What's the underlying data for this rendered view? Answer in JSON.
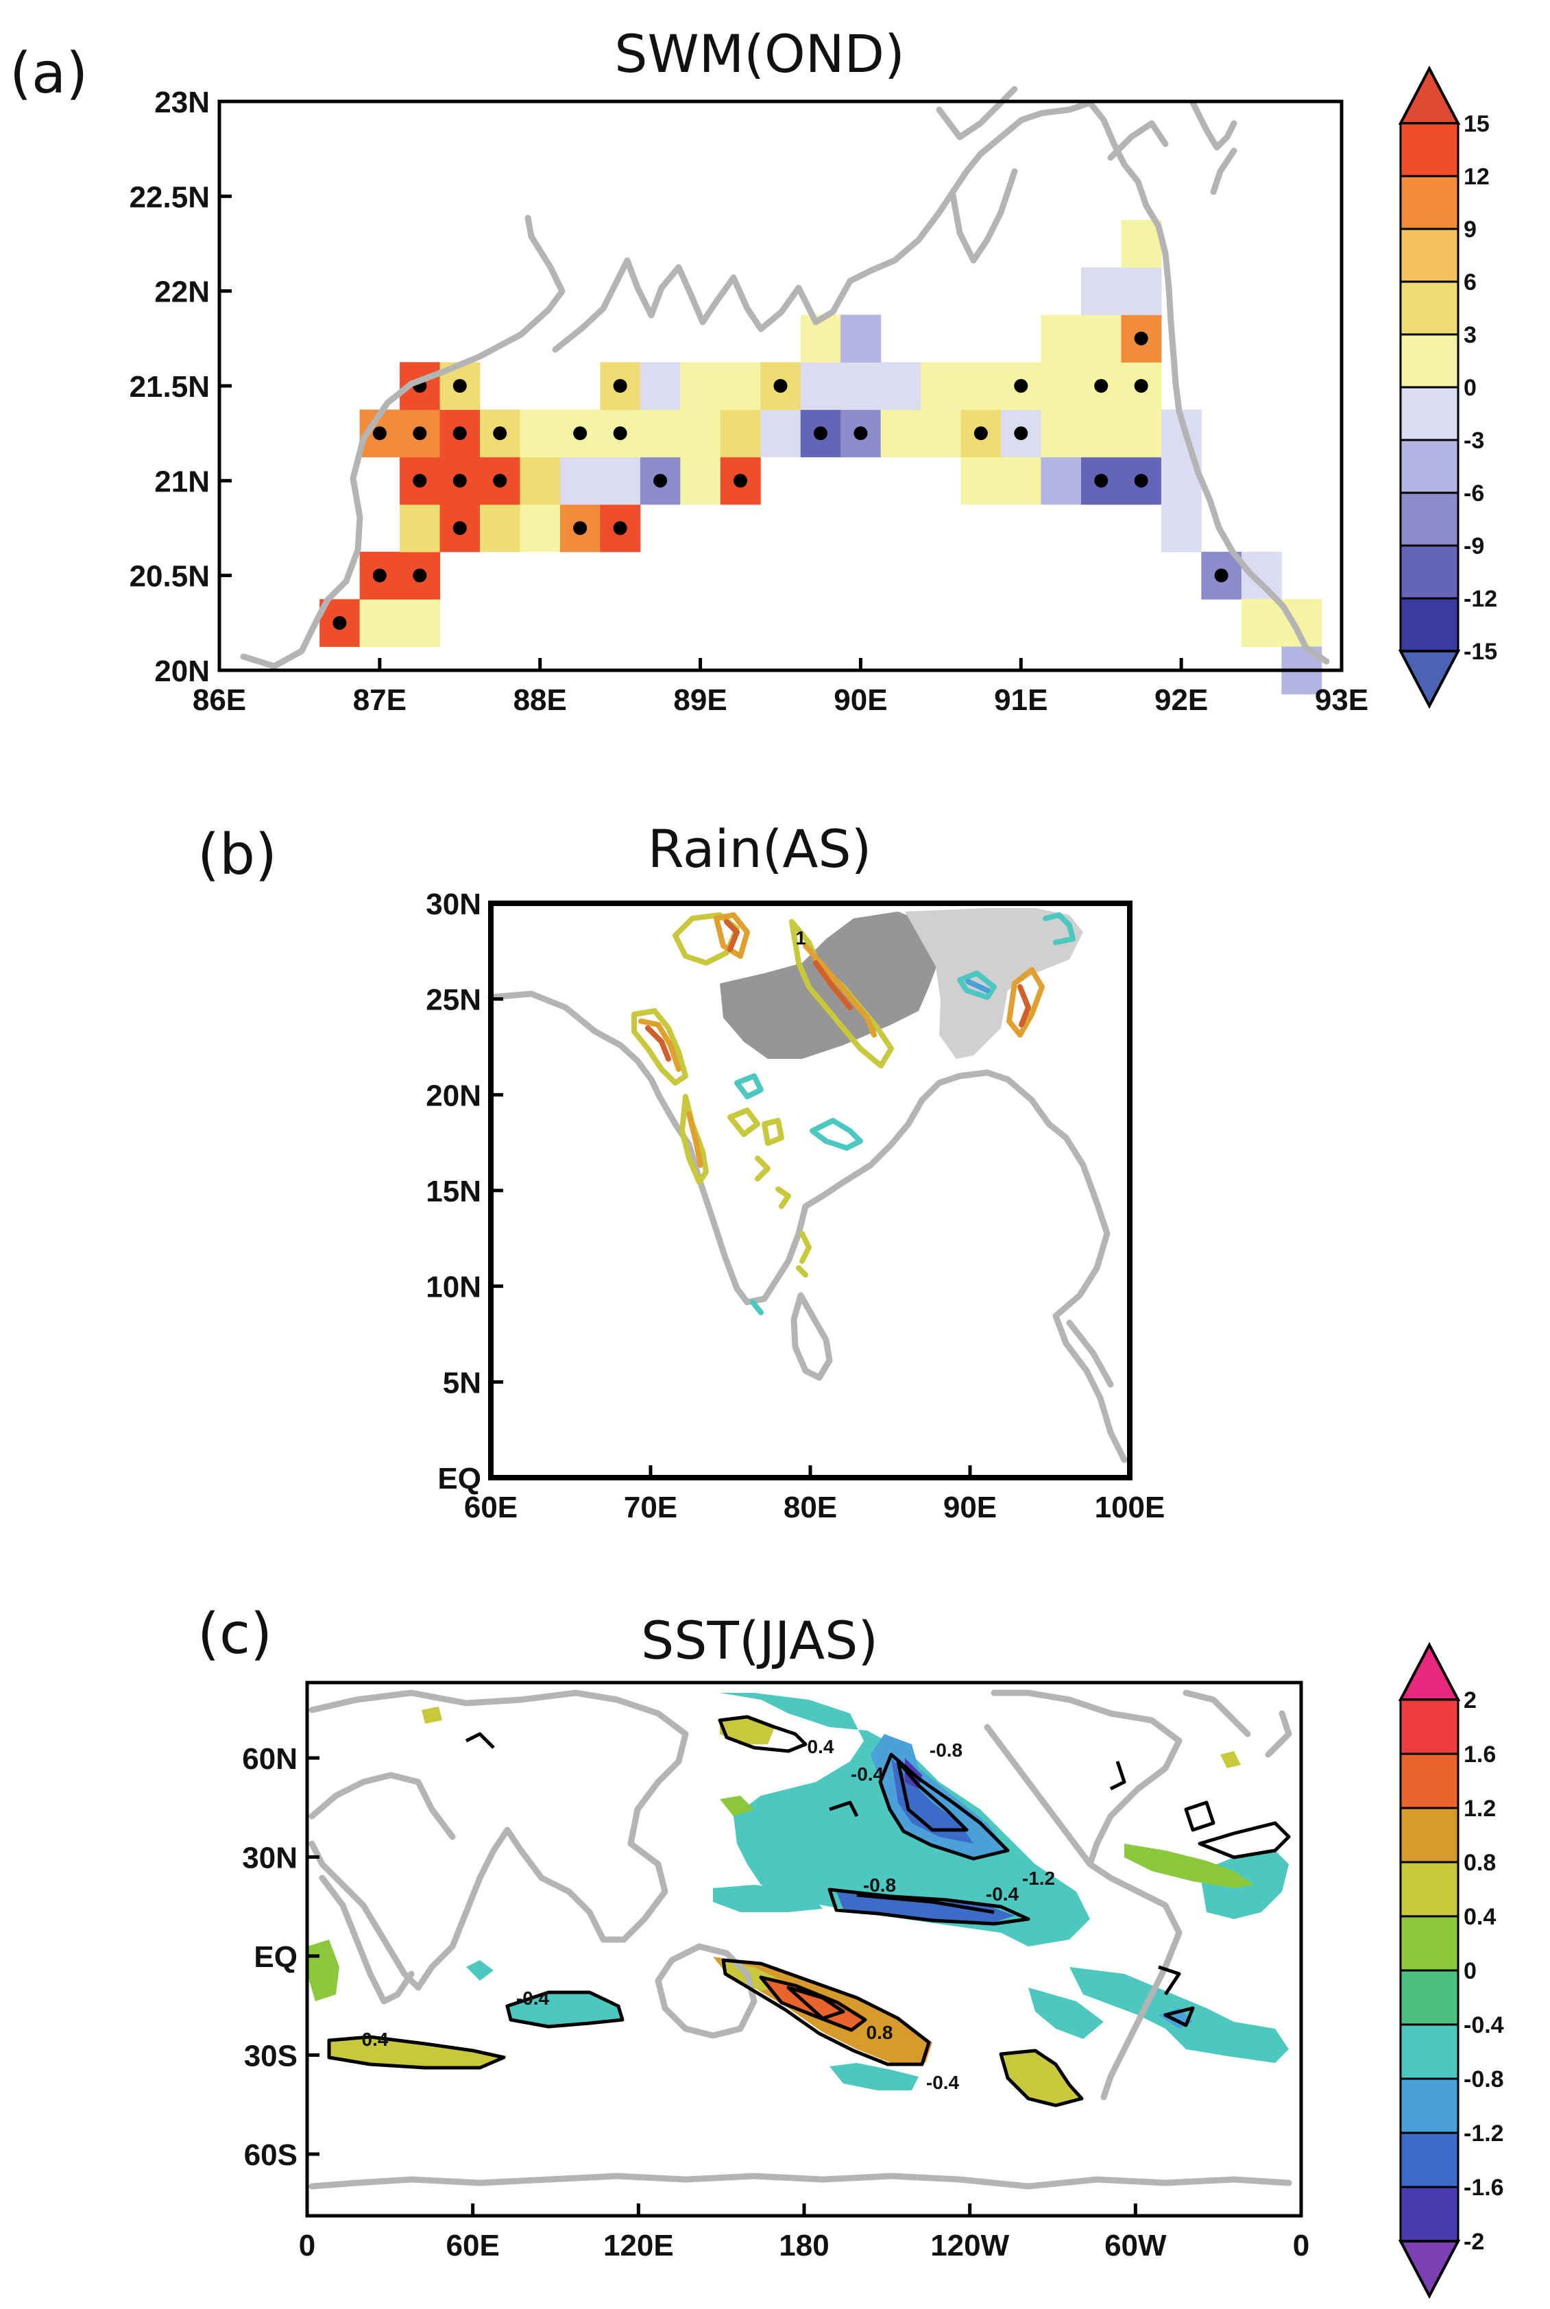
{
  "figure": {
    "panels": [
      {
        "letter": "(a)",
        "title": "SWM(OND)"
      },
      {
        "letter": "(b)",
        "title": "Rain(AS)"
      },
      {
        "letter": "(c)",
        "title": "SST(JJAS)"
      }
    ]
  },
  "chart_data": [
    {
      "type": "heatmap",
      "title": "SWM(OND)",
      "panel_label": "(a)",
      "xlim": [
        86,
        93
      ],
      "ylim": [
        20,
        23
      ],
      "x_ticks": [
        "86E",
        "87E",
        "88E",
        "89E",
        "90E",
        "91E",
        "92E",
        "93E"
      ],
      "y_ticks": [
        "20N",
        "20.5N",
        "21N",
        "21.5N",
        "22N",
        "22.5N",
        "23N"
      ],
      "colorbar": {
        "levels": [
          "15",
          "12",
          "9",
          "6",
          "3",
          "0",
          "-3",
          "-6",
          "-9",
          "-12",
          "-15"
        ],
        "colors": [
          "#c83a2a",
          "#ee4e2c",
          "#f08c3c",
          "#f4c25c",
          "#f0dc74",
          "#f4f4a4",
          "#dcdcf0",
          "#b4b4e2",
          "#8c8ccc",
          "#6464b8",
          "#3a3aa0",
          "#4a63b4"
        ]
      },
      "stipple_note": "black dots mark significant grid cells",
      "cells": [
        {
          "lon": 86.75,
          "lat": 20.25,
          "v": 14,
          "sig": true
        },
        {
          "lon": 87.0,
          "lat": 20.25,
          "v": 2
        },
        {
          "lon": 87.25,
          "lat": 20.25,
          "v": 2
        },
        {
          "lon": 87.0,
          "lat": 20.5,
          "v": 14,
          "sig": true
        },
        {
          "lon": 87.25,
          "lat": 20.5,
          "v": 14,
          "sig": true
        },
        {
          "lon": 87.25,
          "lat": 20.75,
          "v": 5
        },
        {
          "lon": 87.5,
          "lat": 20.75,
          "v": 13,
          "sig": true
        },
        {
          "lon": 87.75,
          "lat": 20.75,
          "v": 5
        },
        {
          "lon": 88.0,
          "lat": 20.75,
          "v": 2
        },
        {
          "lon": 88.25,
          "lat": 20.75,
          "v": 9,
          "sig": true
        },
        {
          "lon": 88.5,
          "lat": 20.75,
          "v": 13,
          "sig": true
        },
        {
          "lon": 87.25,
          "lat": 21.0,
          "v": 14,
          "sig": true
        },
        {
          "lon": 87.5,
          "lat": 21.0,
          "v": 14,
          "sig": true
        },
        {
          "lon": 87.75,
          "lat": 21.0,
          "v": 14,
          "sig": true
        },
        {
          "lon": 88.0,
          "lat": 21.0,
          "v": 5
        },
        {
          "lon": 88.25,
          "lat": 21.0,
          "v": -2
        },
        {
          "lon": 88.5,
          "lat": 21.0,
          "v": -2
        },
        {
          "lon": 88.75,
          "lat": 21.0,
          "v": -9,
          "sig": true
        },
        {
          "lon": 89.0,
          "lat": 21.0,
          "v": 2
        },
        {
          "lon": 89.25,
          "lat": 21.0,
          "v": 14,
          "sig": true
        },
        {
          "lon": 90.75,
          "lat": 21.0,
          "v": 2
        },
        {
          "lon": 91.0,
          "lat": 21.0,
          "v": 2
        },
        {
          "lon": 91.25,
          "lat": 21.0,
          "v": -6
        },
        {
          "lon": 91.5,
          "lat": 21.0,
          "v": -12,
          "sig": true
        },
        {
          "lon": 91.75,
          "lat": 21.0,
          "v": -12,
          "sig": true
        },
        {
          "lon": 92.0,
          "lat": 21.0,
          "v": -2
        },
        {
          "lon": 87.0,
          "lat": 21.25,
          "v": 9,
          "sig": true
        },
        {
          "lon": 87.25,
          "lat": 21.25,
          "v": 9,
          "sig": true
        },
        {
          "lon": 87.5,
          "lat": 21.25,
          "v": 14,
          "sig": true
        },
        {
          "lon": 87.75,
          "lat": 21.25,
          "v": 5,
          "sig": true
        },
        {
          "lon": 88.0,
          "lat": 21.25,
          "v": 2
        },
        {
          "lon": 88.25,
          "lat": 21.25,
          "v": 2,
          "sig": true
        },
        {
          "lon": 88.5,
          "lat": 21.25,
          "v": 2,
          "sig": true
        },
        {
          "lon": 88.75,
          "lat": 21.25,
          "v": 2
        },
        {
          "lon": 89.0,
          "lat": 21.25,
          "v": 2
        },
        {
          "lon": 89.25,
          "lat": 21.25,
          "v": 5
        },
        {
          "lon": 89.5,
          "lat": 21.25,
          "v": -2
        },
        {
          "lon": 89.75,
          "lat": 21.25,
          "v": -12,
          "sig": true
        },
        {
          "lon": 90.0,
          "lat": 21.25,
          "v": -9,
          "sig": true
        },
        {
          "lon": 90.25,
          "lat": 21.25,
          "v": 2
        },
        {
          "lon": 90.5,
          "lat": 21.25,
          "v": 2
        },
        {
          "lon": 90.75,
          "lat": 21.25,
          "v": 5,
          "sig": true
        },
        {
          "lon": 91.0,
          "lat": 21.25,
          "v": -2,
          "sig": true
        },
        {
          "lon": 91.25,
          "lat": 21.25,
          "v": 2
        },
        {
          "lon": 91.5,
          "lat": 21.25,
          "v": 2
        },
        {
          "lon": 91.75,
          "lat": 21.25,
          "v": 2
        },
        {
          "lon": 92.0,
          "lat": 21.25,
          "v": -2
        },
        {
          "lon": 87.25,
          "lat": 21.5,
          "v": 14,
          "sig": true
        },
        {
          "lon": 87.5,
          "lat": 21.5,
          "v": 5,
          "sig": true
        },
        {
          "lon": 88.5,
          "lat": 21.5,
          "v": 5,
          "sig": true
        },
        {
          "lon": 88.75,
          "lat": 21.5,
          "v": -2
        },
        {
          "lon": 89.0,
          "lat": 21.5,
          "v": 2
        },
        {
          "lon": 89.25,
          "lat": 21.5,
          "v": 2
        },
        {
          "lon": 89.5,
          "lat": 21.5,
          "v": 5,
          "sig": true
        },
        {
          "lon": 89.75,
          "lat": 21.5,
          "v": -2
        },
        {
          "lon": 90.0,
          "lat": 21.5,
          "v": -2
        },
        {
          "lon": 90.25,
          "lat": 21.5,
          "v": -2
        },
        {
          "lon": 90.5,
          "lat": 21.5,
          "v": 2
        },
        {
          "lon": 90.75,
          "lat": 21.5,
          "v": 2
        },
        {
          "lon": 91.0,
          "lat": 21.5,
          "v": 2,
          "sig": true
        },
        {
          "lon": 91.25,
          "lat": 21.5,
          "v": 2
        },
        {
          "lon": 91.5,
          "lat": 21.5,
          "v": 2,
          "sig": true
        },
        {
          "lon": 91.75,
          "lat": 21.5,
          "v": 2,
          "sig": true
        },
        {
          "lon": 89.75,
          "lat": 21.75,
          "v": 2
        },
        {
          "lon": 90.0,
          "lat": 21.75,
          "v": -6
        },
        {
          "lon": 91.25,
          "lat": 21.75,
          "v": 2
        },
        {
          "lon": 91.5,
          "lat": 21.75,
          "v": 2
        },
        {
          "lon": 91.75,
          "lat": 21.75,
          "v": 9,
          "sig": true
        },
        {
          "lon": 91.5,
          "lat": 22.0,
          "v": -2
        },
        {
          "lon": 91.75,
          "lat": 22.0,
          "v": -2
        },
        {
          "lon": 91.75,
          "lat": 22.25,
          "v": 2
        },
        {
          "lon": 92.0,
          "lat": 20.75,
          "v": -2
        },
        {
          "lon": 92.25,
          "lat": 20.5,
          "v": -9,
          "sig": true
        },
        {
          "lon": 92.5,
          "lat": 20.5,
          "v": -2
        },
        {
          "lon": 92.5,
          "lat": 20.25,
          "v": 2
        },
        {
          "lon": 92.75,
          "lat": 20.25,
          "v": 2
        },
        {
          "lon": 92.75,
          "lat": 20.0,
          "v": -6
        }
      ]
    },
    {
      "type": "contour",
      "title": "Rain(AS)",
      "panel_label": "(b)",
      "xlim": [
        60,
        100
      ],
      "ylim": [
        0,
        30
      ],
      "x_ticks": [
        "60E",
        "70E",
        "80E",
        "90E",
        "100E"
      ],
      "y_ticks": [
        "EQ",
        "5N",
        "10N",
        "15N",
        "20N",
        "25N",
        "30N"
      ],
      "contour_labels": [
        "1"
      ],
      "shading": "grey areas over northern India",
      "contour_colors": [
        "#c8c83c",
        "#e0a030",
        "#d0602c",
        "#4cc8c0",
        "#4aa0d8"
      ]
    },
    {
      "type": "heatmap",
      "title": "SST(JJAS)",
      "panel_label": "(c)",
      "x_ticks": [
        "0",
        "60E",
        "120E",
        "180",
        "120W",
        "60W",
        "0"
      ],
      "y_ticks": [
        "60N",
        "30N",
        "EQ",
        "30S",
        "60S"
      ],
      "contour_labels": [
        "0.4",
        "-0.4",
        "-0.8",
        "-1.2",
        "-0.8",
        "-0.4",
        "-0.4",
        "0.4",
        "0.8",
        "-0.4"
      ],
      "colorbar": {
        "levels": [
          "2",
          "1.6",
          "1.2",
          "0.8",
          "0.4",
          "0",
          "-0.4",
          "-0.8",
          "-1.2",
          "-1.6",
          "-2"
        ],
        "colors": [
          "#e8287c",
          "#ee3c3c",
          "#e8642c",
          "#d89a2c",
          "#c8c83c",
          "#8cc83c",
          "#4cc080",
          "#4cc8c0",
          "#4aa0d8",
          "#3c6cc8",
          "#4a3cb0",
          "#7c40b0"
        ]
      }
    }
  ]
}
